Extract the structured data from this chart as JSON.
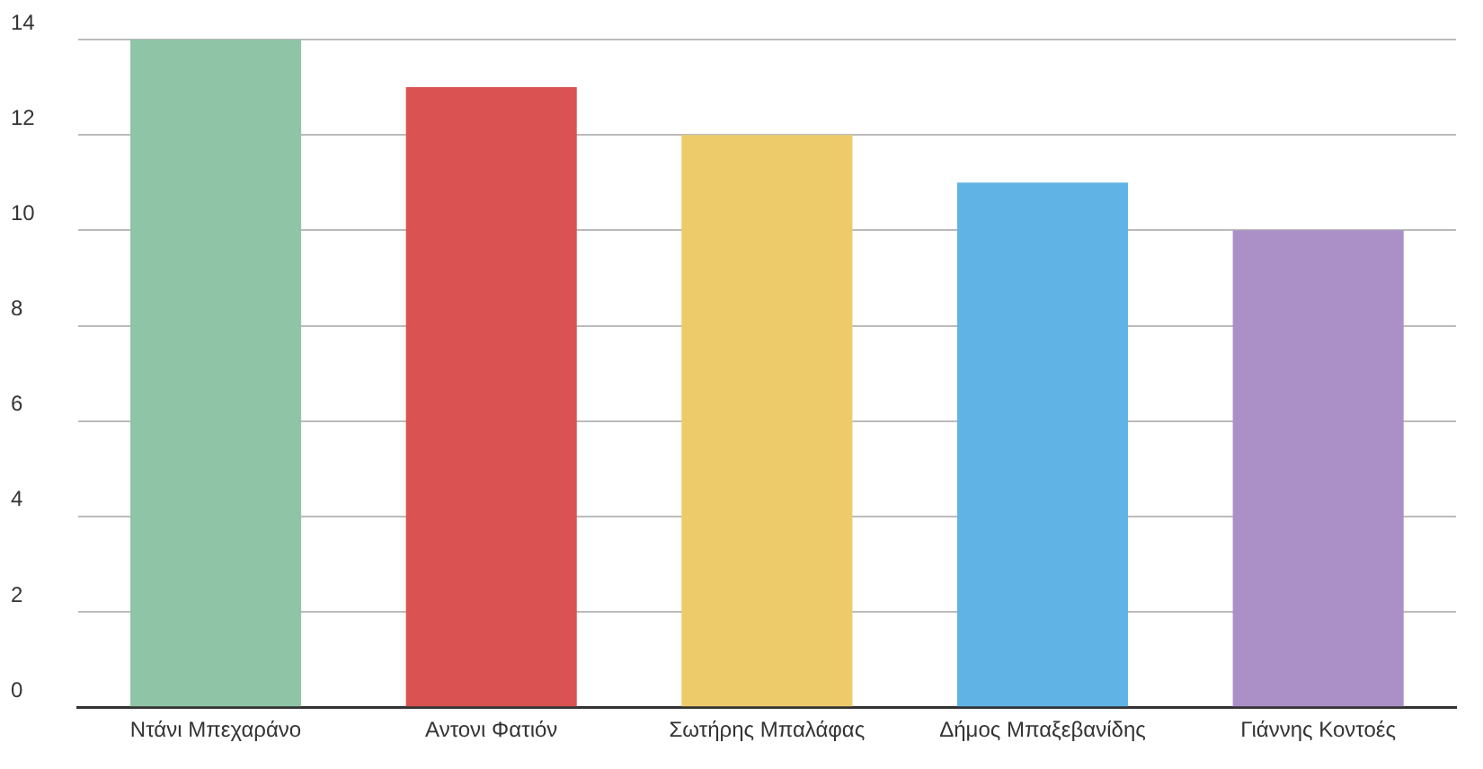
{
  "chart_data": {
    "type": "bar",
    "categories": [
      "Ντάνι Μπεχαράνο",
      "Αντονι Φατιόν",
      "Σωτήρης Μπαλάφας",
      "Δήμος Μπαξεβανίδης",
      "Γιάννης Κοντοές"
    ],
    "values": [
      14,
      13,
      12,
      11,
      10
    ],
    "colors": [
      "#8fc4a6",
      "#db5253",
      "#eecb6a",
      "#5fb4e5",
      "#ab90c8"
    ],
    "ylim": [
      0,
      14
    ],
    "yticks": [
      0,
      2,
      4,
      6,
      8,
      10,
      12,
      14
    ],
    "grid": "y"
  }
}
